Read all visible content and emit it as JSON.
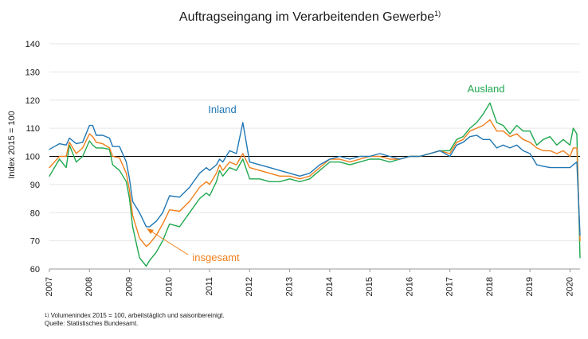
{
  "chart_data": {
    "type": "line",
    "title": "Auftragseingang im Verarbeitenden Gewerbe",
    "title_footnote_mark": "1)",
    "ylabel": "Index 2015 = 100",
    "xlabel": "",
    "ylim": [
      60,
      140
    ],
    "yticks": [
      "60",
      "70",
      "80",
      "90",
      "100",
      "110",
      "120",
      "130",
      "140"
    ],
    "xticks": [
      "2007",
      "2008",
      "2009",
      "2010",
      "2011",
      "2012",
      "2013",
      "2014",
      "2015",
      "2016",
      "2017",
      "2018",
      "2019",
      "2020"
    ],
    "xlim": [
      2007.0,
      2020.25
    ],
    "reference_line": 100,
    "grid": "horizontal",
    "series": [
      {
        "name": "Inland",
        "color": "#1f77b4",
        "x": [
          2007.0,
          2007.25,
          2007.42,
          2007.5,
          2007.67,
          2007.83,
          2008.0,
          2008.08,
          2008.17,
          2008.33,
          2008.5,
          2008.58,
          2008.75,
          2008.92,
          2009.0,
          2009.08,
          2009.25,
          2009.42,
          2009.5,
          2009.67,
          2009.83,
          2010.0,
          2010.25,
          2010.5,
          2010.75,
          2010.92,
          2011.0,
          2011.17,
          2011.25,
          2011.33,
          2011.5,
          2011.67,
          2011.83,
          2012.0,
          2012.25,
          2012.5,
          2012.75,
          2013.0,
          2013.25,
          2013.5,
          2013.75,
          2014.0,
          2014.25,
          2014.5,
          2014.75,
          2015.0,
          2015.25,
          2015.5,
          2015.75,
          2016.0,
          2016.25,
          2016.5,
          2016.75,
          2017.0,
          2017.17,
          2017.33,
          2017.5,
          2017.67,
          2017.83,
          2018.0,
          2018.17,
          2018.33,
          2018.5,
          2018.67,
          2018.83,
          2019.0,
          2019.17,
          2019.33,
          2019.5,
          2019.67,
          2019.83,
          2020.0,
          2020.08,
          2020.17,
          2020.25
        ],
        "values": [
          102.5,
          104.5,
          104,
          106.5,
          104.5,
          105,
          111,
          111,
          107.5,
          107.5,
          106.5,
          103.5,
          103.5,
          98,
          92,
          84,
          80,
          75,
          75,
          77,
          80,
          86,
          85.5,
          89,
          94,
          96,
          95,
          97,
          99,
          98,
          102,
          101,
          112,
          98,
          97,
          96,
          95,
          94,
          93,
          94,
          97,
          99,
          100,
          99,
          100,
          100,
          101,
          100,
          99,
          100,
          100,
          101,
          102,
          100,
          104,
          105,
          107,
          107.5,
          106,
          106,
          103,
          104,
          103,
          104,
          102,
          101,
          97,
          96.5,
          96,
          96,
          96,
          96,
          97,
          98,
          72
        ]
      },
      {
        "name": "insgesamt",
        "color": "#f07f1c",
        "x": [
          2007.0,
          2007.25,
          2007.42,
          2007.5,
          2007.67,
          2007.83,
          2008.0,
          2008.08,
          2008.17,
          2008.33,
          2008.5,
          2008.58,
          2008.75,
          2008.92,
          2009.0,
          2009.08,
          2009.25,
          2009.42,
          2009.5,
          2009.67,
          2009.83,
          2010.0,
          2010.25,
          2010.5,
          2010.75,
          2010.92,
          2011.0,
          2011.17,
          2011.25,
          2011.33,
          2011.5,
          2011.67,
          2011.83,
          2012.0,
          2012.25,
          2012.5,
          2012.75,
          2013.0,
          2013.25,
          2013.5,
          2013.75,
          2014.0,
          2014.25,
          2014.5,
          2014.75,
          2015.0,
          2015.25,
          2015.5,
          2015.75,
          2016.0,
          2016.25,
          2016.5,
          2016.75,
          2017.0,
          2017.17,
          2017.33,
          2017.5,
          2017.67,
          2017.83,
          2018.0,
          2018.17,
          2018.33,
          2018.5,
          2018.67,
          2018.83,
          2019.0,
          2019.17,
          2019.33,
          2019.5,
          2019.67,
          2019.83,
          2020.0,
          2020.08,
          2020.17,
          2020.25
        ],
        "values": [
          96,
          100,
          100,
          105,
          101,
          103,
          108,
          107,
          105,
          104.5,
          103,
          100,
          99.5,
          94,
          88,
          79,
          71,
          68,
          69,
          72,
          76,
          81,
          80.5,
          84,
          89,
          91,
          90,
          94,
          97,
          95,
          98,
          97,
          101,
          96,
          95,
          94,
          93,
          93,
          92,
          93,
          96,
          99,
          99,
          98,
          99,
          100,
          100,
          99,
          99,
          100,
          100,
          101,
          102,
          101,
          105,
          106,
          109,
          110,
          111,
          113,
          109,
          109,
          107,
          108,
          106,
          105,
          103,
          102,
          102,
          101,
          102,
          100,
          103,
          103,
          70
        ]
      },
      {
        "name": "Ausland",
        "color": "#1fa84f",
        "x": [
          2007.0,
          2007.25,
          2007.42,
          2007.5,
          2007.67,
          2007.83,
          2008.0,
          2008.08,
          2008.17,
          2008.33,
          2008.5,
          2008.58,
          2008.75,
          2008.92,
          2009.0,
          2009.08,
          2009.25,
          2009.42,
          2009.5,
          2009.67,
          2009.83,
          2010.0,
          2010.25,
          2010.5,
          2010.75,
          2010.92,
          2011.0,
          2011.17,
          2011.25,
          2011.33,
          2011.5,
          2011.67,
          2011.83,
          2012.0,
          2012.25,
          2012.5,
          2012.75,
          2013.0,
          2013.25,
          2013.5,
          2013.75,
          2014.0,
          2014.25,
          2014.5,
          2014.75,
          2015.0,
          2015.25,
          2015.5,
          2015.75,
          2016.0,
          2016.25,
          2016.5,
          2016.75,
          2017.0,
          2017.17,
          2017.33,
          2017.5,
          2017.67,
          2017.83,
          2018.0,
          2018.17,
          2018.33,
          2018.5,
          2018.67,
          2018.83,
          2019.0,
          2019.17,
          2019.33,
          2019.5,
          2019.67,
          2019.83,
          2020.0,
          2020.08,
          2020.17,
          2020.25
        ],
        "values": [
          93,
          99,
          96,
          104,
          98,
          100,
          105.5,
          104,
          103,
          103,
          102.5,
          97,
          95,
          91,
          85,
          75,
          64,
          61,
          63,
          66,
          70,
          76,
          75,
          80,
          85,
          87,
          86,
          91,
          95,
          93,
          96,
          95,
          99,
          92,
          92,
          91,
          91,
          92,
          91,
          92,
          95,
          98,
          98,
          97,
          98,
          99,
          99,
          98,
          99,
          100,
          100,
          101,
          102,
          102,
          106,
          107,
          110,
          112,
          115,
          119,
          112,
          111,
          108,
          111,
          109,
          109,
          104,
          106,
          107,
          104,
          106,
          104,
          110,
          108,
          64
        ]
      }
    ],
    "footnote": "Volumenindex 2015 = 100, arbeitstäglich und saisonbereinigt.",
    "footnote_mark": "1)",
    "source": "Quelle: Statistisches Bundesamt."
  }
}
